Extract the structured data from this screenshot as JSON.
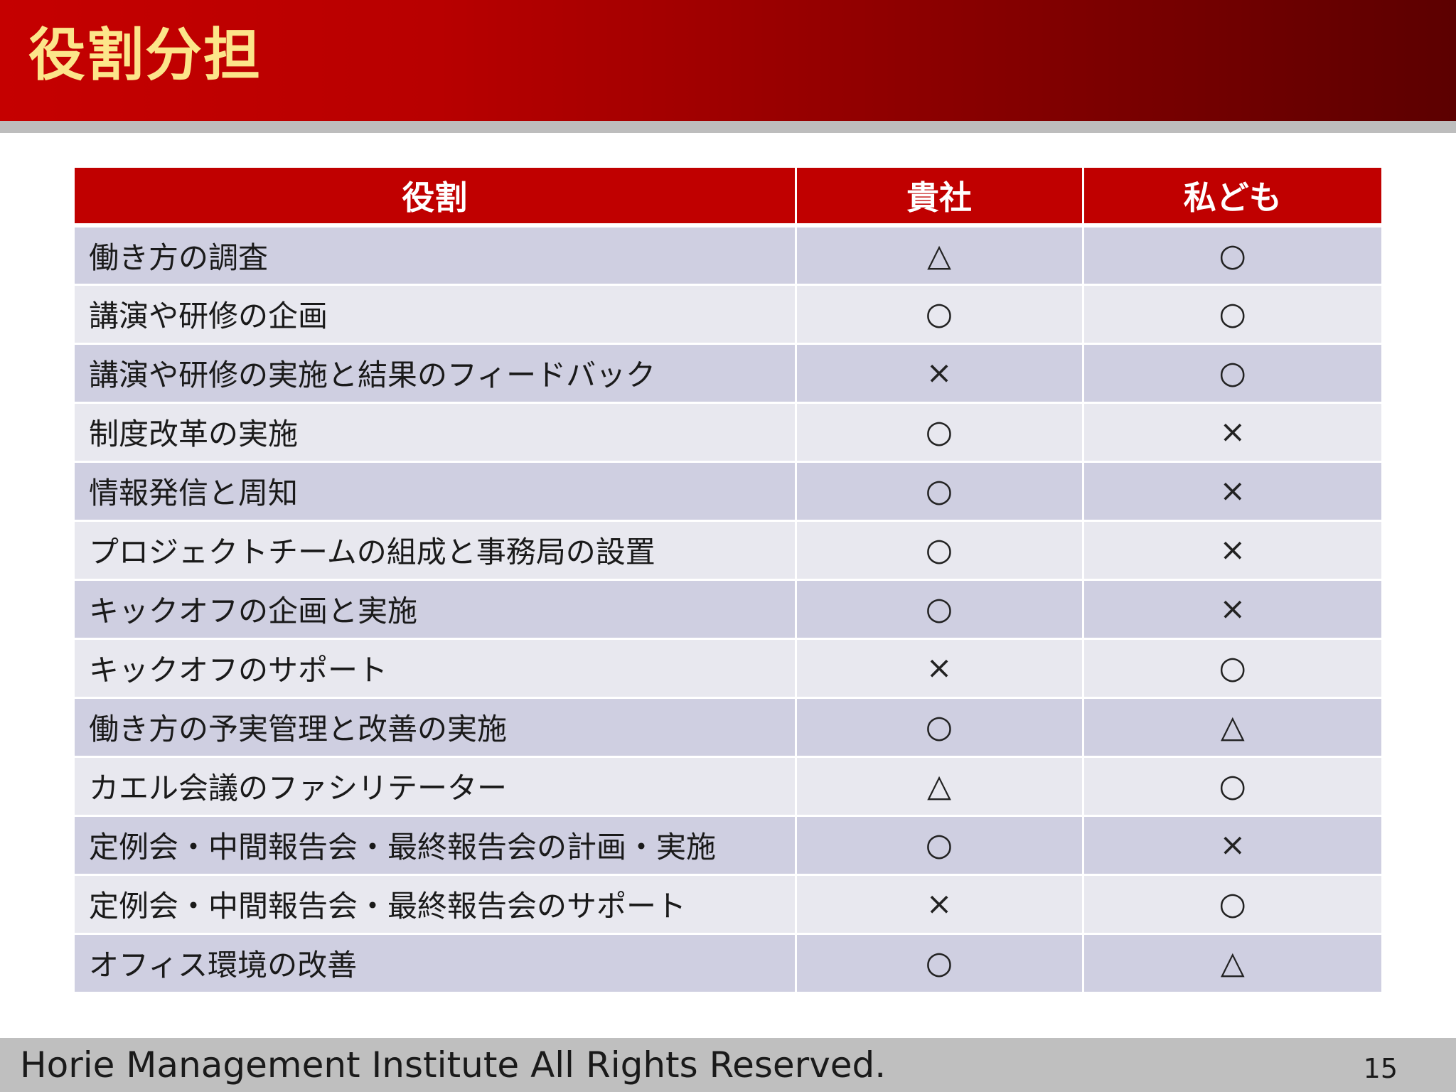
{
  "title": "役割分担",
  "table": {
    "headers": [
      "役割",
      "貴社",
      "私ども"
    ],
    "rows": [
      {
        "role": "働き方の調査",
        "client": "△",
        "us": "○"
      },
      {
        "role": "講演や研修の企画",
        "client": "○",
        "us": "○"
      },
      {
        "role": "講演や研修の実施と結果のフィードバック",
        "client": "×",
        "us": "○"
      },
      {
        "role": "制度改革の実施",
        "client": "○",
        "us": "×"
      },
      {
        "role": "情報発信と周知",
        "client": "○",
        "us": "×"
      },
      {
        "role": "プロジェクトチームの組成と事務局の設置",
        "client": "○",
        "us": "×"
      },
      {
        "role": "キックオフの企画と実施",
        "client": "○",
        "us": "×"
      },
      {
        "role": "キックオフのサポート",
        "client": "×",
        "us": "○"
      },
      {
        "role": "働き方の予実管理と改善の実施",
        "client": "○",
        "us": "△"
      },
      {
        "role": "カエル会議のファシリテーター",
        "client": "△",
        "us": "○"
      },
      {
        "role": "定例会・中間報告会・最終報告会の計画・実施",
        "client": "○",
        "us": "×"
      },
      {
        "role": "定例会・中間報告会・最終報告会のサポート",
        "client": "×",
        "us": "○"
      },
      {
        "role": "オフィス環境の改善",
        "client": "○",
        "us": "△"
      }
    ]
  },
  "footer": {
    "copyright": "Horie Management Institute All Rights Reserved.",
    "page_number": "15"
  },
  "colors": {
    "header_red": "#c00000",
    "title_yellow": "#fce58a",
    "row_dark": "#cfcfe1",
    "row_light": "#e8e8ef",
    "footer_gray": "#bfbfbf"
  }
}
